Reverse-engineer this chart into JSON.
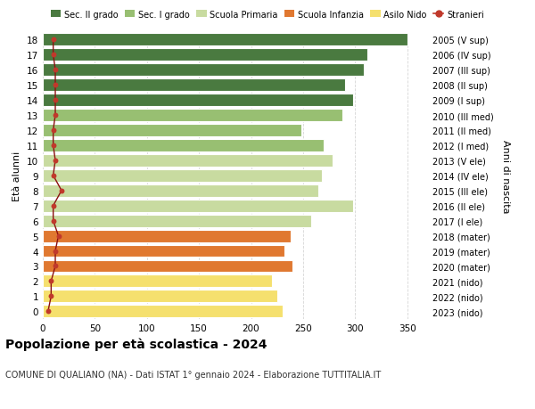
{
  "ages": [
    0,
    1,
    2,
    3,
    4,
    5,
    6,
    7,
    8,
    9,
    10,
    11,
    12,
    13,
    14,
    15,
    16,
    17,
    18
  ],
  "right_labels": [
    "2023 (nido)",
    "2022 (nido)",
    "2021 (nido)",
    "2020 (mater)",
    "2019 (mater)",
    "2018 (mater)",
    "2017 (I ele)",
    "2016 (II ele)",
    "2015 (III ele)",
    "2014 (IV ele)",
    "2013 (V ele)",
    "2012 (I med)",
    "2011 (II med)",
    "2010 (III med)",
    "2009 (I sup)",
    "2008 (II sup)",
    "2007 (III sup)",
    "2006 (IV sup)",
    "2005 (V sup)"
  ],
  "bar_values": [
    230,
    225,
    220,
    240,
    232,
    238,
    258,
    298,
    265,
    268,
    278,
    270,
    248,
    288,
    298,
    290,
    308,
    312,
    350
  ],
  "bar_colors": [
    "#f5e06e",
    "#f5e06e",
    "#f5e06e",
    "#e07830",
    "#e07830",
    "#e07830",
    "#c8dba0",
    "#c8dba0",
    "#c8dba0",
    "#c8dba0",
    "#c8dba0",
    "#98bf72",
    "#98bf72",
    "#98bf72",
    "#4a7a40",
    "#4a7a40",
    "#4a7a40",
    "#4a7a40",
    "#4a7a40"
  ],
  "stranieri_values": [
    5,
    8,
    8,
    12,
    12,
    15,
    10,
    10,
    18,
    10,
    12,
    10,
    10,
    12,
    12,
    12,
    12,
    10,
    10
  ],
  "legend_labels": [
    "Sec. II grado",
    "Sec. I grado",
    "Scuola Primaria",
    "Scuola Infanzia",
    "Asilo Nido",
    "Stranieri"
  ],
  "legend_colors": [
    "#4a7a40",
    "#98bf72",
    "#c8dba0",
    "#e07830",
    "#f5e06e",
    "#c0392b"
  ],
  "ylabel_left": "Età alunni",
  "ylabel_right": "Anni di nascita",
  "title": "Popolazione per età scolastica - 2024",
  "subtitle": "COMUNE DI QUALIANO (NA) - Dati ISTAT 1° gennaio 2024 - Elaborazione TUTTITALIA.IT",
  "xlim": [
    0,
    370
  ],
  "xticks": [
    0,
    50,
    100,
    150,
    200,
    250,
    300,
    350
  ],
  "bg_color": "#ffffff",
  "grid_color": "#cccccc"
}
